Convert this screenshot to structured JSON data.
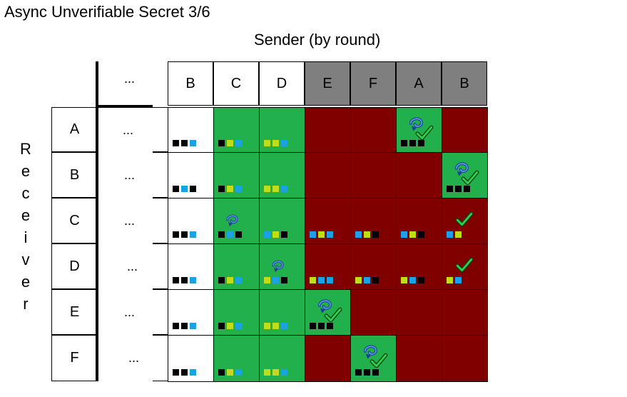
{
  "title": "Async Unverifiable Secret 3/6",
  "sender_label": "Sender (by round)",
  "receiver_label": "Receiver",
  "ellipsis": "...",
  "columns": [
    {
      "label": "B",
      "shade": "light"
    },
    {
      "label": "C",
      "shade": "light"
    },
    {
      "label": "D",
      "shade": "light"
    },
    {
      "label": "E",
      "shade": "dark"
    },
    {
      "label": "F",
      "shade": "dark"
    },
    {
      "label": "A",
      "shade": "dark"
    },
    {
      "label": "B",
      "shade": "dark"
    }
  ],
  "rows": [
    "A",
    "B",
    "C",
    "D",
    "E",
    "F"
  ],
  "colors": {
    "white": "#ffffff",
    "green": "#21b04b",
    "red": "#800000",
    "header_dark": "#7f7f7f",
    "square_black": "#000000",
    "square_blue": "#1aa3e0",
    "square_yellow": "#bfdd1a"
  },
  "legend_squares": "k = black, b = blue, y = yellow-green",
  "grid": [
    [
      {
        "fill": "white",
        "squares": "kkb",
        "icon": ""
      },
      {
        "fill": "green",
        "squares": "kyb",
        "icon": ""
      },
      {
        "fill": "green",
        "squares": "yyb",
        "icon": ""
      },
      {
        "fill": "red",
        "squares": "",
        "icon": ""
      },
      {
        "fill": "red",
        "squares": "",
        "icon": ""
      },
      {
        "fill": "green",
        "squares": "kkk",
        "icon": "swirl-check"
      },
      {
        "fill": "red",
        "squares": "",
        "icon": ""
      }
    ],
    [
      {
        "fill": "white",
        "squares": "kbk",
        "icon": ""
      },
      {
        "fill": "green",
        "squares": "kyb",
        "icon": ""
      },
      {
        "fill": "green",
        "squares": "yyb",
        "icon": ""
      },
      {
        "fill": "red",
        "squares": "",
        "icon": ""
      },
      {
        "fill": "red",
        "squares": "",
        "icon": ""
      },
      {
        "fill": "red",
        "squares": "",
        "icon": ""
      },
      {
        "fill": "green",
        "squares": "kkk",
        "icon": "swirl-check"
      }
    ],
    [
      {
        "fill": "white",
        "squares": "kkb",
        "icon": ""
      },
      {
        "fill": "green",
        "squares": "kbk",
        "icon": "swirl"
      },
      {
        "fill": "green",
        "squares": "byk",
        "icon": ""
      },
      {
        "fill": "red",
        "squares": "byb",
        "icon": ""
      },
      {
        "fill": "red",
        "squares": "byk",
        "icon": ""
      },
      {
        "fill": "red",
        "squares": "byk",
        "icon": ""
      },
      {
        "fill": "red",
        "squares": "by",
        "icon": "check"
      }
    ],
    [
      {
        "fill": "white",
        "squares": "kkb",
        "icon": ""
      },
      {
        "fill": "green",
        "squares": "kyb",
        "icon": ""
      },
      {
        "fill": "green",
        "squares": "ybk",
        "icon": "swirl"
      },
      {
        "fill": "red",
        "squares": "ybb",
        "icon": ""
      },
      {
        "fill": "red",
        "squares": "ybk",
        "icon": ""
      },
      {
        "fill": "red",
        "squares": "ybk",
        "icon": ""
      },
      {
        "fill": "red",
        "squares": "yb",
        "icon": "check"
      }
    ],
    [
      {
        "fill": "white",
        "squares": "kkb",
        "icon": ""
      },
      {
        "fill": "green",
        "squares": "kyb",
        "icon": ""
      },
      {
        "fill": "green",
        "squares": "yyb",
        "icon": ""
      },
      {
        "fill": "green",
        "squares": "kkk",
        "icon": "swirl-check"
      },
      {
        "fill": "red",
        "squares": "",
        "icon": ""
      },
      {
        "fill": "red",
        "squares": "",
        "icon": ""
      },
      {
        "fill": "red",
        "squares": "",
        "icon": ""
      }
    ],
    [
      {
        "fill": "white",
        "squares": "kkb",
        "icon": ""
      },
      {
        "fill": "green",
        "squares": "kyb",
        "icon": ""
      },
      {
        "fill": "green",
        "squares": "yyb",
        "icon": ""
      },
      {
        "fill": "red",
        "squares": "",
        "icon": ""
      },
      {
        "fill": "green",
        "squares": "kkk",
        "icon": "swirl-check"
      },
      {
        "fill": "red",
        "squares": "",
        "icon": ""
      },
      {
        "fill": "red",
        "squares": "",
        "icon": ""
      }
    ]
  ]
}
